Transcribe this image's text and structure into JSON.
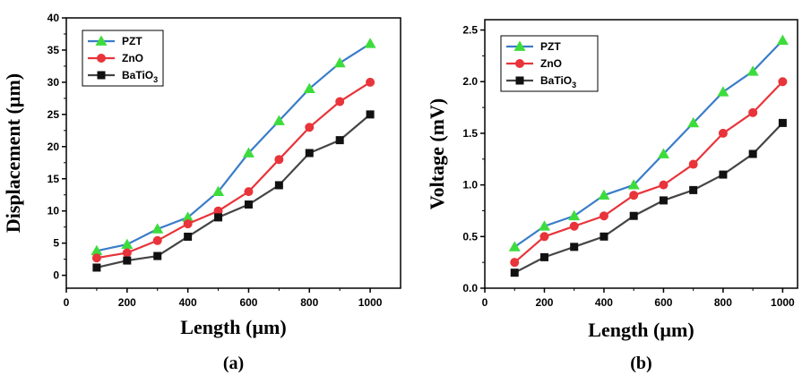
{
  "chart_data": [
    {
      "type": "line",
      "panel_label": "(a)",
      "xlabel": "Length (µm)",
      "ylabel": "Displacement (µm)",
      "xlim": [
        0,
        1100
      ],
      "ylim": [
        -2,
        40
      ],
      "xticks": [
        0,
        200,
        400,
        600,
        800,
        1000
      ],
      "yticks": [
        0,
        5,
        10,
        15,
        20,
        25,
        30,
        35,
        40
      ],
      "grid": false,
      "legend_position": "top-left",
      "x": [
        100,
        200,
        300,
        400,
        500,
        600,
        700,
        800,
        900,
        1000
      ],
      "series": [
        {
          "name": "PZT",
          "color": "#3a7dc9",
          "marker": "triangle",
          "marker_color": "#3ddc3d",
          "values": [
            3.8,
            4.8,
            7.2,
            9,
            13,
            19,
            24,
            29,
            33,
            36
          ]
        },
        {
          "name": "ZnO",
          "color": "#e8343a",
          "marker": "circle",
          "marker_color": "#e8343a",
          "values": [
            2.7,
            3.5,
            5.4,
            8,
            10,
            13,
            18,
            23,
            27,
            30
          ]
        },
        {
          "name": "BaTiO",
          "name_sub": "3",
          "color": "#444444",
          "marker": "square",
          "marker_color": "#111111",
          "values": [
            1.2,
            2.3,
            3,
            6,
            9,
            11,
            14,
            19,
            21,
            25
          ]
        }
      ]
    },
    {
      "type": "line",
      "panel_label": "(b)",
      "xlabel": "Length (µm)",
      "ylabel": "Voltage (mV)",
      "xlim": [
        0,
        1050
      ],
      "ylim": [
        0,
        2.6
      ],
      "xticks": [
        0,
        200,
        400,
        600,
        800,
        1000
      ],
      "yticks": [
        0.0,
        0.5,
        1.0,
        1.5,
        2.0,
        2.5
      ],
      "ytick_decimals": 1,
      "grid": false,
      "legend_position": "top-left",
      "x": [
        100,
        200,
        300,
        400,
        500,
        600,
        700,
        800,
        900,
        1000
      ],
      "series": [
        {
          "name": "PZT",
          "color": "#3a7dc9",
          "marker": "triangle",
          "marker_color": "#3ddc3d",
          "values": [
            0.4,
            0.6,
            0.7,
            0.9,
            1.0,
            1.3,
            1.6,
            1.9,
            2.1,
            2.4
          ]
        },
        {
          "name": "ZnO",
          "color": "#e8343a",
          "marker": "circle",
          "marker_color": "#e8343a",
          "values": [
            0.25,
            0.5,
            0.6,
            0.7,
            0.9,
            1.0,
            1.2,
            1.5,
            1.7,
            2.0
          ]
        },
        {
          "name": "BaTiO",
          "name_sub": "3",
          "color": "#444444",
          "marker": "square",
          "marker_color": "#111111",
          "values": [
            0.15,
            0.3,
            0.4,
            0.5,
            0.7,
            0.85,
            0.95,
            1.1,
            1.3,
            1.6
          ]
        }
      ]
    }
  ]
}
